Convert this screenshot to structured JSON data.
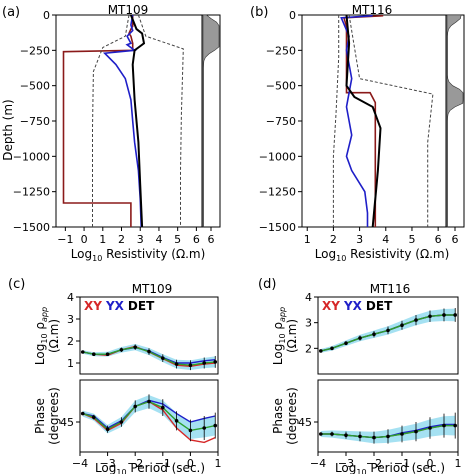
{
  "panels": {
    "a": {
      "label": "(a)",
      "title": "MT109"
    },
    "b": {
      "label": "(b)",
      "title": "MT116"
    },
    "c": {
      "label": "(c)",
      "title": "MT109"
    },
    "d": {
      "label": "(d)",
      "title": "MT116"
    }
  },
  "legend": {
    "xy": "XY",
    "yx": "YX",
    "det": "DET"
  },
  "colors": {
    "xy": "#d62728",
    "yx": "#1f1fc8",
    "det": "#000000",
    "model_red": "#8b1a1a",
    "model_blue": "#1f1fc8",
    "fit": "#2ca02c",
    "ensemble": "#5bc8e8"
  },
  "chart_data": [
    {
      "id": "a",
      "type": "line",
      "title": "MT109",
      "xlabel": "Log₁₀ Resistivity (Ω.m)",
      "ylabel": "Depth (m)",
      "xlim": [
        -1.5,
        6.3
      ],
      "ylim": [
        -1500,
        0
      ],
      "xticks": [
        "−1",
        "0",
        "1",
        "2",
        "3",
        "4",
        "5",
        "6"
      ],
      "yticks": [
        "0",
        "−250",
        "−500",
        "−750",
        "−1000",
        "−1250",
        "−1500"
      ],
      "series": [
        {
          "key": "red_model",
          "x": [
            2.6,
            2.6,
            2.5,
            2.4,
            2.5,
            2.6,
            2.6,
            -1.1,
            -1.1,
            2.5,
            2.5
          ],
          "y": [
            0,
            -80,
            -100,
            -130,
            -150,
            -200,
            -250,
            -260,
            -1330,
            -1330,
            -1500
          ]
        },
        {
          "key": "blue_model",
          "x": [
            2.6,
            2.5,
            2.6,
            2.3,
            2.5,
            2.3,
            2.7,
            1.1,
            1.7,
            2.2,
            2.5,
            2.6,
            2.7,
            2.9,
            3.0,
            3.05
          ],
          "y": [
            0,
            -70,
            -110,
            -150,
            -200,
            -210,
            -250,
            -270,
            -350,
            -450,
            -600,
            -750,
            -900,
            -1100,
            -1300,
            -1500
          ]
        },
        {
          "key": "black_median",
          "x": [
            2.5,
            2.8,
            3.1,
            3.2,
            2.9,
            2.7,
            2.6,
            2.7,
            2.9,
            3.0,
            3.1
          ],
          "y": [
            0,
            -100,
            -130,
            -200,
            -230,
            -250,
            -350,
            -600,
            -900,
            -1200,
            -1500
          ]
        },
        {
          "key": "dotted_lower",
          "x": [
            2.4,
            2.2,
            1.0,
            0.5,
            0.45,
            0.45
          ],
          "y": [
            0,
            -150,
            -230,
            -400,
            -800,
            -1500
          ]
        },
        {
          "key": "dotted_upper",
          "x": [
            2.9,
            3.3,
            5.3,
            5.2,
            5.15,
            5.15
          ],
          "y": [
            0,
            -150,
            -240,
            -700,
            -1100,
            -1500
          ]
        }
      ],
      "histogram_peak_depths": [
        -70,
        -150,
        -220
      ]
    },
    {
      "id": "b",
      "type": "line",
      "title": "MT116",
      "xlabel": "Log₁₀ Resistivity (Ω.m)",
      "ylabel": "",
      "xlim": [
        0.8,
        6.3
      ],
      "ylim": [
        -1500,
        0
      ],
      "xticks": [
        "1",
        "2",
        "3",
        "4",
        "5",
        "6"
      ],
      "yticks": [
        "0",
        "−250",
        "−500",
        "−750",
        "−1000",
        "−1250",
        "−1500"
      ],
      "series": [
        {
          "key": "red_model",
          "x": [
            3.9,
            2.4,
            2.5,
            2.5,
            2.5,
            3.4,
            3.6,
            3.6
          ],
          "y": [
            -5,
            -20,
            -80,
            -300,
            -550,
            -550,
            -620,
            -1500
          ]
        },
        {
          "key": "blue_model",
          "x": [
            3.5,
            2.3,
            2.6,
            2.5,
            2.6,
            2.7,
            2.6,
            2.5,
            2.6,
            2.7,
            2.5,
            2.7,
            3.2,
            3.3,
            3.3
          ],
          "y": [
            -5,
            -20,
            -150,
            -250,
            -350,
            -450,
            -550,
            -650,
            -750,
            -850,
            -1000,
            -1100,
            -1250,
            -1400,
            -1500
          ]
        },
        {
          "key": "black_median",
          "x": [
            2.5,
            2.6,
            2.5,
            2.8,
            3.5,
            3.8,
            3.7,
            3.5
          ],
          "y": [
            0,
            -200,
            -500,
            -580,
            -650,
            -800,
            -1100,
            -1500
          ]
        },
        {
          "key": "dotted_lower",
          "x": [
            2.2,
            2.2,
            2.1,
            2.0,
            2.0
          ],
          "y": [
            0,
            -300,
            -700,
            -1000,
            -1500
          ]
        },
        {
          "key": "dotted_upper",
          "x": [
            2.6,
            3.0,
            5.8,
            5.6,
            5.6
          ],
          "y": [
            0,
            -450,
            -560,
            -900,
            -1500
          ]
        }
      ],
      "histogram_peak_depths": [
        -10,
        -560,
        -600
      ]
    },
    {
      "id": "c",
      "type": "line",
      "title": "MT109",
      "xlabel": "Log₁₀ Period (sec.)",
      "ylabel_top": "Log₁₀ ρ app (Ω.m)",
      "ylabel_bottom": "Phase (degrees)",
      "xlim": [
        -4,
        1
      ],
      "ylim_top": [
        0.5,
        4
      ],
      "ylim_bottom": [
        20,
        80
      ],
      "xticks": [
        "−4",
        "−3",
        "−2",
        "−1",
        "0",
        "1"
      ],
      "yticks_top": [
        "1",
        "2",
        "3",
        "4"
      ],
      "yticks_bottom": [
        "45"
      ],
      "x": [
        -3.9,
        -3.5,
        -3.0,
        -2.5,
        -2.0,
        -1.5,
        -1.0,
        -0.5,
        0.0,
        0.5,
        0.9
      ],
      "rho": {
        "xy": [
          1.5,
          1.4,
          1.35,
          1.6,
          1.75,
          1.5,
          1.2,
          0.9,
          0.85,
          0.95,
          1.0
        ],
        "yx": [
          1.5,
          1.4,
          1.4,
          1.6,
          1.7,
          1.55,
          1.25,
          1.0,
          1.0,
          1.1,
          1.15
        ],
        "det": [
          1.5,
          1.4,
          1.4,
          1.6,
          1.72,
          1.52,
          1.22,
          0.95,
          0.9,
          1.0,
          1.05
        ]
      },
      "phase": {
        "xy": [
          52,
          48,
          38,
          44,
          58,
          62,
          55,
          40,
          30,
          28,
          32
        ],
        "yx": [
          52,
          50,
          40,
          46,
          58,
          63,
          60,
          52,
          45,
          48,
          50
        ],
        "det": [
          52,
          49,
          39,
          45,
          58,
          62,
          57,
          46,
          38,
          40,
          42
        ]
      }
    },
    {
      "id": "d",
      "type": "line",
      "title": "MT116",
      "xlabel": "Log₁₀ Period (sec.)",
      "ylabel_top": "Log₁₀ ρ app (Ω.m)",
      "ylabel_bottom": "Phase (degrees)",
      "xlim": [
        -4,
        1
      ],
      "ylim_top": [
        1,
        4
      ],
      "ylim_bottom": [
        20,
        80
      ],
      "xticks": [
        "−4",
        "−3",
        "−2",
        "−1",
        "0",
        "1"
      ],
      "yticks_top": [
        "2",
        "3",
        "4"
      ],
      "yticks_bottom": [
        "45"
      ],
      "x": [
        -3.9,
        -3.5,
        -3.0,
        -2.5,
        -2.0,
        -1.5,
        -1.0,
        -0.5,
        0.0,
        0.5,
        0.9
      ],
      "rho": {
        "xy": [
          1.9,
          2.0,
          2.2,
          2.4,
          2.55,
          2.7,
          2.9,
          3.1,
          3.25,
          3.3,
          3.3
        ],
        "yx": [
          1.9,
          2.0,
          2.2,
          2.4,
          2.55,
          2.7,
          2.9,
          3.1,
          3.25,
          3.3,
          3.3
        ],
        "det": [
          1.9,
          2.0,
          2.2,
          2.4,
          2.55,
          2.7,
          2.9,
          3.1,
          3.25,
          3.3,
          3.3
        ]
      },
      "phase": {
        "xy": [
          35,
          35,
          34,
          33,
          32,
          33,
          35,
          37,
          40,
          42,
          42
        ],
        "yx": [
          35,
          35,
          34,
          33,
          32,
          33,
          36,
          38,
          41,
          43,
          43
        ],
        "det": [
          35,
          35,
          34,
          33,
          32,
          33,
          35,
          37,
          40,
          42,
          42
        ]
      }
    }
  ],
  "text": {
    "xlabel_res_pre": "Log",
    "xlabel_res_sub": "10",
    "xlabel_res_post": " Resistivity (Ω.m)",
    "xlabel_per_pre": "Log",
    "xlabel_per_sub": "10",
    "xlabel_per_post": " Period (sec.)",
    "ylabel_depth": "Depth (m)",
    "ylabel_rho_pre": "Log",
    "ylabel_rho_sub": "10",
    "ylabel_rho_sym": " ρ",
    "ylabel_rho_app": "app",
    "ylabel_rho_unit": "(Ω.m)",
    "ylabel_phase1": "Phase",
    "ylabel_phase2": "(degrees)"
  }
}
